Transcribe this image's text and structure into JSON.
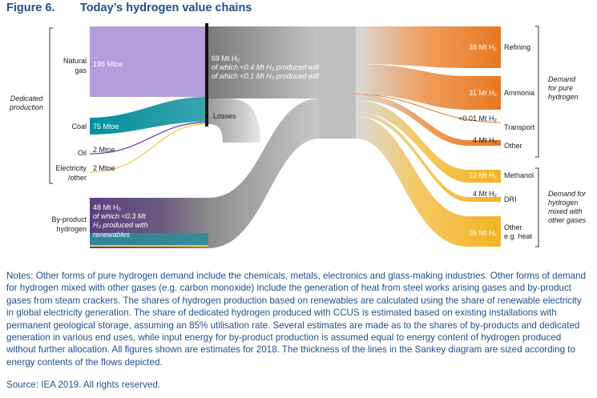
{
  "header": {
    "figure_number": "Figure 6.",
    "title": "Today’s hydrogen value chains"
  },
  "sources": {
    "natural_gas": {
      "label": "Natural gas",
      "value": "196 Mtoe"
    },
    "coal": {
      "label": "Coal",
      "value": "75 Mtoe"
    },
    "oil": {
      "label": "Oil",
      "value": "2 Mtoe"
    },
    "electricity": {
      "label": "Electricity /other",
      "value": "2 Mtoe"
    },
    "byproduct": {
      "label": "By-product hydrogen",
      "value": "48 Mt H₂",
      "note1": "of which <0.3 Mt",
      "note2": "H₂ produced with",
      "note3": "renewables"
    }
  },
  "groups": {
    "dedicated_production": "Dedicated production",
    "demand_pure": "Demand for pure hydrogen",
    "demand_mixed": "Demand for hydrogen mixed with other gases"
  },
  "central": {
    "value": "69 Mt H₂",
    "note1": "of which <0.4 Mt H₂ produced with CCUS",
    "note2": "of which <0.1 Mt H₂ produced with renewables",
    "losses": "Losses"
  },
  "outputs": [
    {
      "label": "Refining",
      "value": "38 Mt H₂"
    },
    {
      "label": "Ammonia",
      "value": "31 Mt H₂"
    },
    {
      "label": "Transport",
      "value": "<0.01 Mt H₂"
    },
    {
      "label": "Other",
      "value": "4 Mt H₂"
    },
    {
      "label": "Methanol",
      "value": "12 Mt H₂"
    },
    {
      "label": "DRI",
      "value": "4 Mt H₂"
    },
    {
      "label": "Other e.g. heat",
      "value": "26 Mt H₂"
    }
  ],
  "colors": {
    "natural_gas": "#b39ddb",
    "coal": "#00909e",
    "oil": "#5b3f99",
    "electricity": "#f2c744",
    "byproduct": "#5b3f80",
    "central": "#a6a6a6",
    "pure_demand": "#e97a25",
    "mixed_demand": "#f2b325",
    "title": "#1f4e8c"
  },
  "notes": "Notes: Other forms of pure hydrogen demand include the chemicals, metals, electronics and glass-making industries. Other forms of demand for hydrogen mixed with other gases (e.g. carbon monoxide) include the generation of heat from steel works arising gases and by-product gases from steam crackers. The shares of hydrogen production based on renewables are calculated using the share of renewable electricity in global electricity generation. The share of dedicated hydrogen produced with CCUS is estimated based on existing installations with permanent geological storage, assuming an 85% utilisation rate. Several estimates are made as to the shares of by-products and dedicated generation in various end uses, while input energy for by-product production is assumed equal to energy content of hydrogen produced without further allocation. All figures shown are estimates for 2018. The thickness of the lines in the Sankey diagram are sized according to energy contents of the flows depicted.",
  "source": "Source: IEA 2019. All rights reserved."
}
